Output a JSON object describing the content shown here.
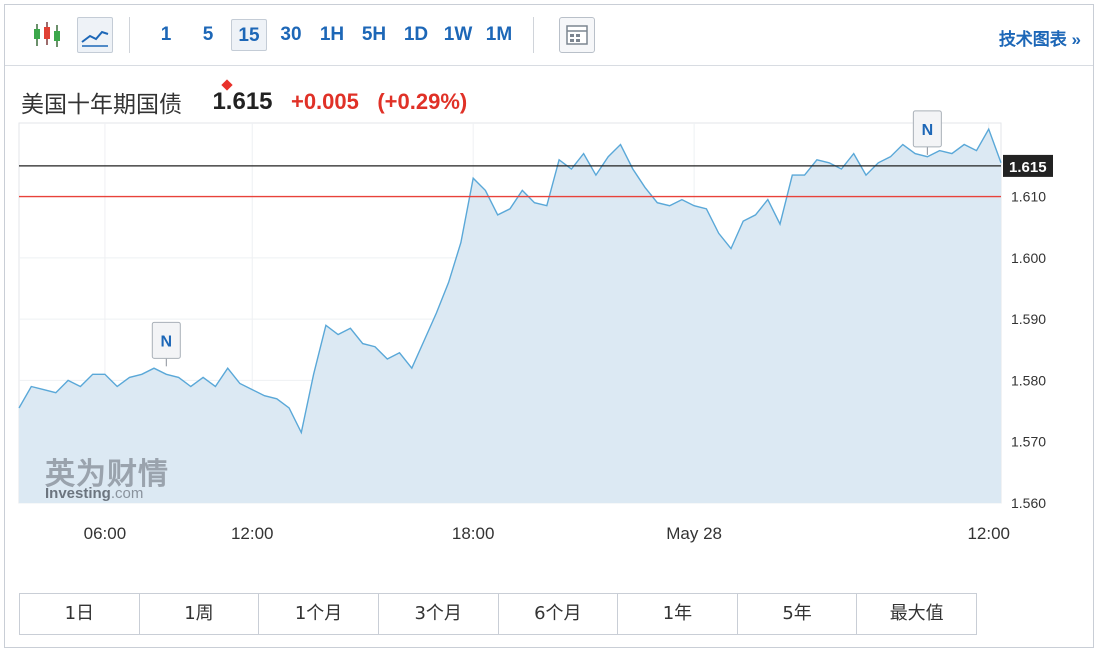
{
  "toolbar": {
    "intervals": [
      "1",
      "5",
      "15",
      "30",
      "1H",
      "5H",
      "1D",
      "1W",
      "1M"
    ],
    "active_interval": "15",
    "tech_chart_link": "技术图表 »"
  },
  "quote": {
    "name": "美国十年期国债",
    "price": "1.615",
    "change": "+0.005",
    "change_pct": "(+0.29%)"
  },
  "colors": {
    "line": "#5aa8d8",
    "fill": "#dce9f3",
    "current_line": "#222222",
    "ref_line": "#e8423a",
    "accent": "#1d67b7",
    "down": "#e03127"
  },
  "watermark": {
    "cn": "英为财情",
    "en_bold": "Investing",
    "en_rest": ".com"
  },
  "range_buttons": [
    "1日",
    "1周",
    "1个月",
    "3个月",
    "6个月",
    "1年",
    "5年",
    "最大值"
  ],
  "chart_data": {
    "type": "area",
    "ylim": [
      1.56,
      1.622
    ],
    "y_ticks": [
      1.56,
      1.57,
      1.58,
      1.59,
      1.6,
      1.61
    ],
    "y_tick_labels": [
      "1.560",
      "1.570",
      "1.580",
      "1.590",
      "1.600",
      "1.610"
    ],
    "x_tick_labels": [
      "06:00",
      "12:00",
      "18:00",
      "May 28",
      "12:00"
    ],
    "x_tick_pos": [
      7,
      19,
      37,
      55,
      79
    ],
    "current_value": 1.615,
    "current_label": "1.615",
    "reference_value": 1.61,
    "markers": [
      {
        "label": "N",
        "x": 12,
        "y": 1.5823
      },
      {
        "label": "N",
        "x": 74,
        "y": 1.6168
      }
    ],
    "values": [
      1.5755,
      1.579,
      1.5785,
      1.578,
      1.58,
      1.579,
      1.581,
      1.581,
      1.579,
      1.5805,
      1.581,
      1.582,
      1.581,
      1.5805,
      1.579,
      1.5805,
      1.579,
      1.582,
      1.5795,
      1.5785,
      1.5775,
      1.577,
      1.5755,
      1.5715,
      1.581,
      1.589,
      1.5875,
      1.5885,
      1.586,
      1.5855,
      1.5835,
      1.5845,
      1.582,
      1.5865,
      1.591,
      1.596,
      1.6025,
      1.613,
      1.611,
      1.607,
      1.608,
      1.611,
      1.609,
      1.6085,
      1.616,
      1.6145,
      1.617,
      1.6135,
      1.6165,
      1.6185,
      1.6145,
      1.6115,
      1.609,
      1.6085,
      1.6095,
      1.6085,
      1.608,
      1.604,
      1.6015,
      1.606,
      1.607,
      1.6095,
      1.6055,
      1.6135,
      1.6135,
      1.616,
      1.6155,
      1.6145,
      1.617,
      1.6135,
      1.6155,
      1.6165,
      1.6185,
      1.617,
      1.6165,
      1.6175,
      1.617,
      1.6185,
      1.6175,
      1.621,
      1.6155
    ]
  }
}
